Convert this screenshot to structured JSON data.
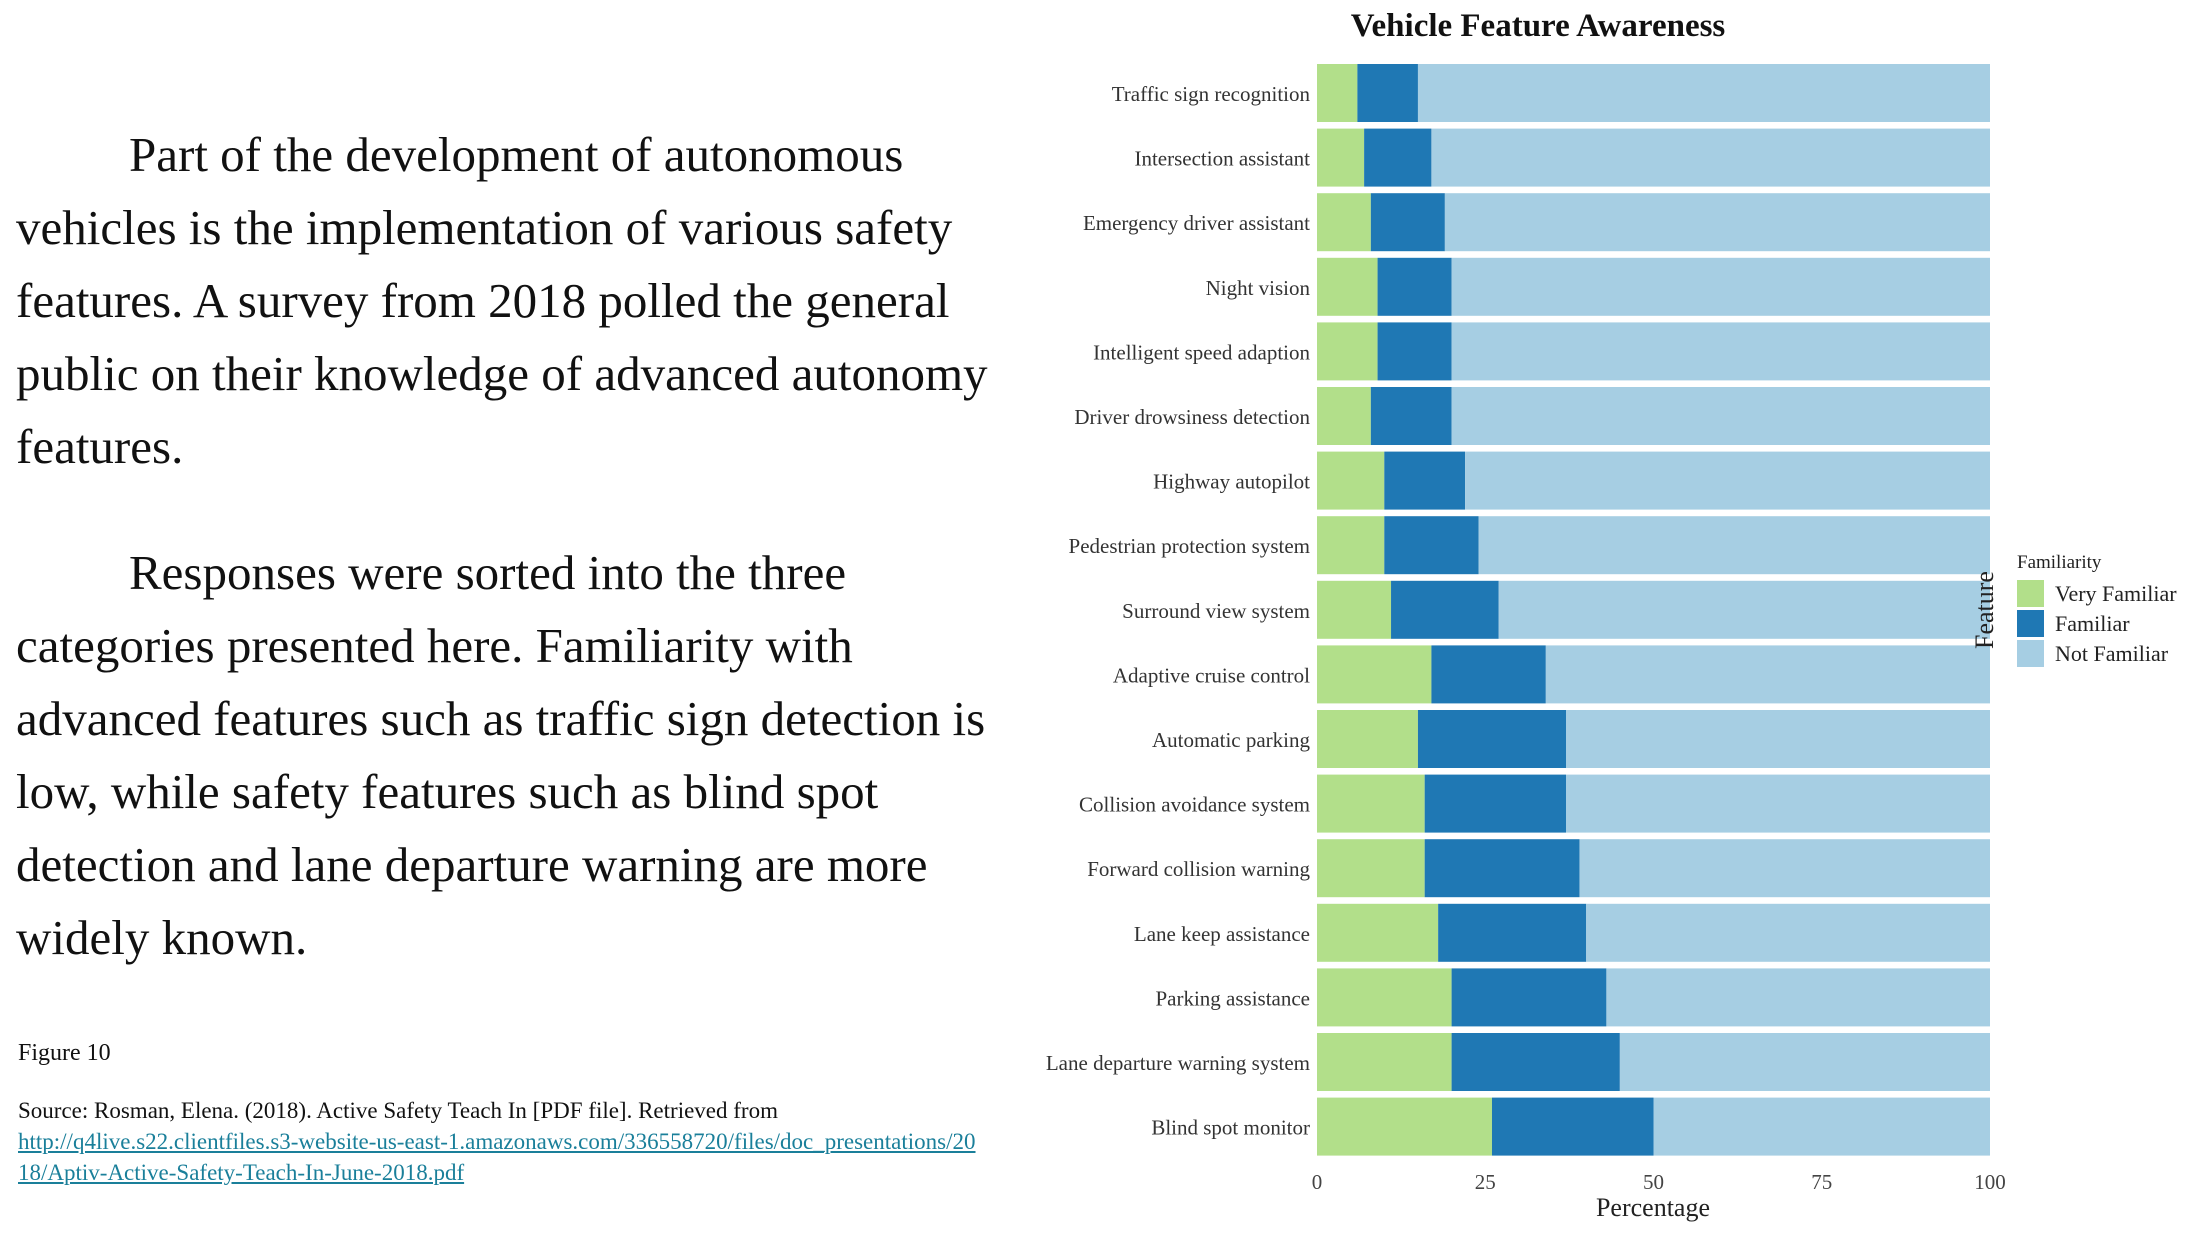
{
  "text": {
    "paragraph1": "Part of the development of autonomous vehicles is the implementation of various safety features. A survey from 2018 polled the general public on their knowledge of advanced autonomy features.",
    "paragraph2": "Responses were sorted into the three categories presented here. Familiarity with advanced features such as traffic sign detection is low, while safety features such as blind spot detection and lane departure warning are more widely known."
  },
  "caption": {
    "figure_label": "Figure 10",
    "source_text": "Source: Rosman, Elena. (2018). Active Safety Teach In [PDF file]. Retrieved from",
    "link": "http://q4live.s22.clientfiles.s3-website-us-east-1.amazonaws.com/336558720/files/doc_presentations/2018/Aptiv-Active-Safety-Teach-In-June-2018.pdf"
  },
  "chart_data": {
    "type": "bar",
    "orientation": "horizontal",
    "stacked": true,
    "title": "Vehicle Feature Awareness",
    "xlabel": "Percentage",
    "ylabel": "Feature",
    "xlim": [
      0,
      100
    ],
    "xticks": [
      0,
      25,
      50,
      75,
      100
    ],
    "legend_title": "Familiarity",
    "legend_position": "right",
    "grid": false,
    "categories": [
      "Traffic sign recognition",
      "Intersection assistant",
      "Emergency driver assistant",
      "Night vision",
      "Intelligent speed adaption",
      "Driver drowsiness detection",
      "Highway autopilot",
      "Pedestrian protection system",
      "Surround view system",
      "Adaptive cruise control",
      "Automatic parking",
      "Collision avoidance system",
      "Forward collision warning",
      "Lane keep assistance",
      "Parking assistance",
      "Lane departure warning system",
      "Blind spot monitor"
    ],
    "series": [
      {
        "name": "Very Familiar",
        "color": "#b2df8a",
        "values": [
          6,
          7,
          8,
          9,
          9,
          8,
          10,
          10,
          11,
          17,
          15,
          16,
          16,
          18,
          20,
          20,
          26
        ]
      },
      {
        "name": "Familiar",
        "color": "#1f78b4",
        "values": [
          9,
          10,
          11,
          11,
          11,
          12,
          12,
          14,
          16,
          17,
          22,
          21,
          23,
          22,
          23,
          25,
          24
        ]
      },
      {
        "name": "Not Familiar",
        "color": "#a6cee3",
        "values": [
          85,
          83,
          81,
          80,
          80,
          80,
          78,
          76,
          73,
          66,
          63,
          63,
          61,
          60,
          57,
          55,
          50
        ]
      }
    ]
  }
}
